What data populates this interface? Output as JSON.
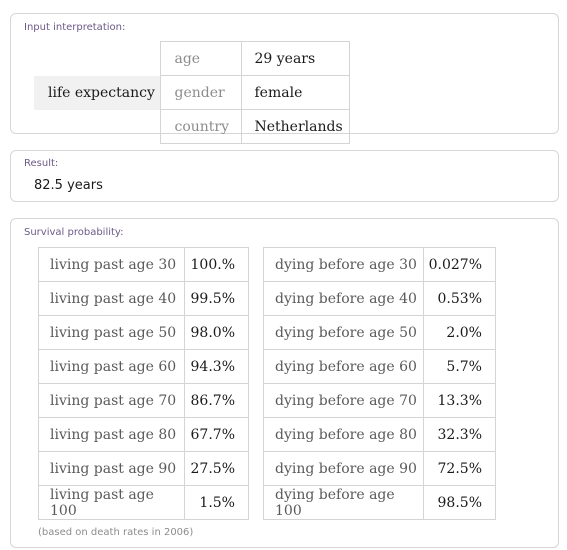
{
  "input_pod": {
    "title": "Input interpretation:",
    "query_label": "life expectancy",
    "params": [
      {
        "key": "age",
        "value": "29 years"
      },
      {
        "key": "gender",
        "value": "female"
      },
      {
        "key": "country",
        "value": "Netherlands"
      }
    ]
  },
  "result_pod": {
    "title": "Result:",
    "value": "82.5 years"
  },
  "survival_pod": {
    "title": "Survival probability:",
    "living": [
      {
        "label": "living past age 30",
        "value": "100.%"
      },
      {
        "label": "living past age 40",
        "value": "99.5%"
      },
      {
        "label": "living past age 50",
        "value": "98.0%"
      },
      {
        "label": "living past age 60",
        "value": "94.3%"
      },
      {
        "label": "living past age 70",
        "value": "86.7%"
      },
      {
        "label": "living past age 80",
        "value": "67.7%"
      },
      {
        "label": "living past age 90",
        "value": "27.5%"
      },
      {
        "label": "living past age 100",
        "value": "1.5%"
      }
    ],
    "dying": [
      {
        "label": "dying before age 30",
        "value": "0.027%"
      },
      {
        "label": "dying before age 40",
        "value": "0.53%"
      },
      {
        "label": "dying before age 50",
        "value": "2.0%"
      },
      {
        "label": "dying before age 60",
        "value": "5.7%"
      },
      {
        "label": "dying before age 70",
        "value": "13.3%"
      },
      {
        "label": "dying before age 80",
        "value": "32.3%"
      },
      {
        "label": "dying before age 90",
        "value": "72.5%"
      },
      {
        "label": "dying before age 100",
        "value": "98.5%"
      }
    ],
    "footnote": "(based on death rates in 2006)"
  }
}
